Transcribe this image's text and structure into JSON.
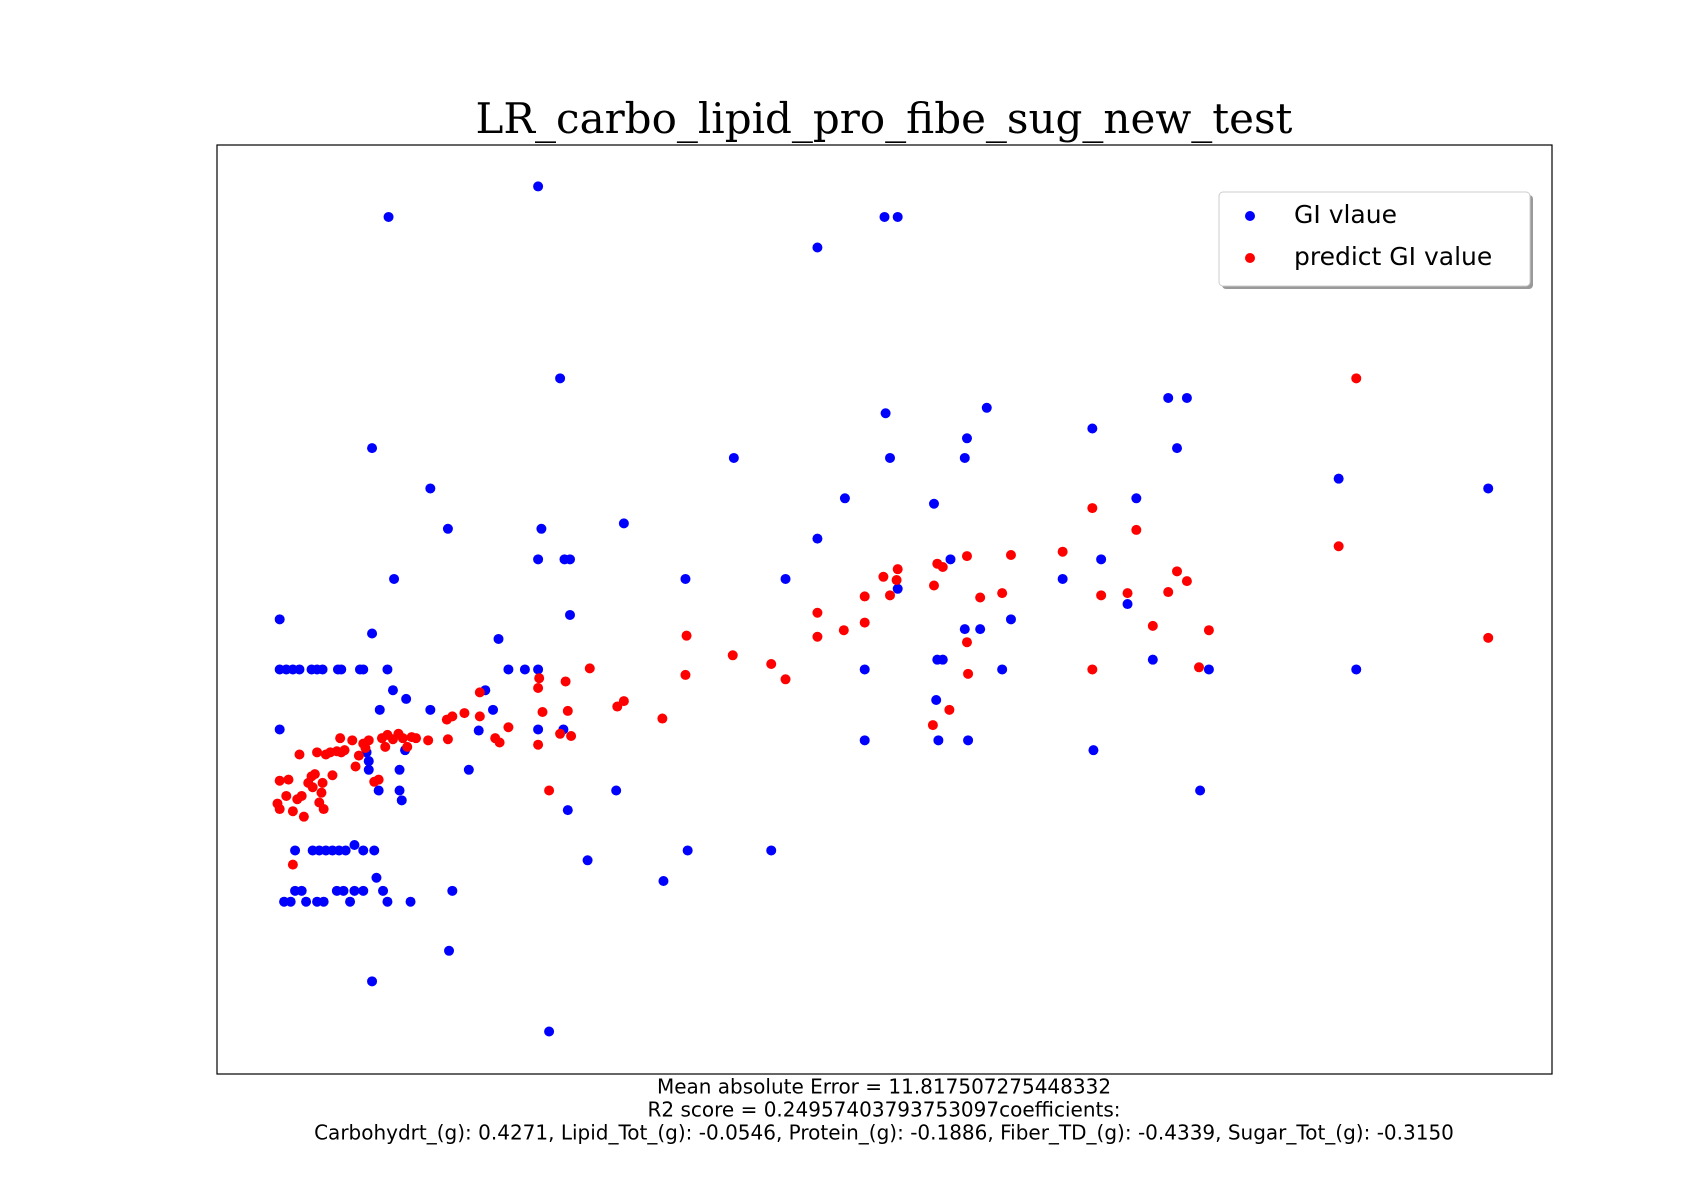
{
  "chart_data": {
    "type": "scatter",
    "title": "LR_carbo_lipid_pro_fibe_sug_new_test",
    "notes": [
      "Mean absolute Error = 11.817507275448332",
      "R2 score = 0.24957403793753097coefficients:",
      "Carbohydrt_(g): 0.4271, Lipid_Tot_(g): -0.0546, Protein_(g): -0.1886, Fiber_TD_(g): -0.4339, Sugar_Tot_(g): -0.3150"
    ],
    "xlim": [
      0,
      1214
    ],
    "ylim": [
      0,
      852
    ],
    "legend": "upper right",
    "series": [
      {
        "name": "GI vlaue",
        "color": "#0000ff",
        "x": [
          57,
          57,
          63,
          69,
          75,
          86,
          91,
          96,
          110,
          113,
          130,
          133,
          155,
          57,
          141,
          156,
          292,
          312,
          302,
          141,
          194,
          210,
          161,
          141,
          160,
          172,
          148,
          194,
          244,
          256,
          265,
          280,
          292,
          292,
          295,
          292,
          316,
          321,
          321,
          315,
          319,
          337,
          229,
          238,
          251,
          370,
          363,
          406,
          426,
          428,
          470,
          504,
          517,
          546,
          546,
          571,
          589,
          589,
          607,
          619,
          608,
          612,
          619,
          652,
          655,
          660,
          654,
          656,
          667,
          680,
          682,
          680,
          694,
          683,
          700,
          714,
          722,
          769,
          796,
          804,
          797,
          828,
          836,
          851,
          865,
          882,
          873,
          894,
          902,
          1020,
          1036,
          1156,
          71,
          87,
          93,
          99,
          105,
          111,
          117,
          133,
          143,
          125,
          71,
          77,
          109,
          115,
          125,
          133,
          151,
          214,
          61,
          67,
          81,
          91,
          97,
          121,
          155,
          176,
          145,
          211,
          138,
          138,
          147,
          166,
          166,
          168,
          171,
          136
        ],
        "values": [
          417,
          371,
          371,
          371,
          371,
          371,
          371,
          371,
          371,
          371,
          371,
          371,
          371,
          316,
          574,
          786,
          814,
          638,
          39,
          85,
          537,
          500,
          454,
          404,
          352,
          344,
          334,
          334,
          352,
          399,
          371,
          371,
          371,
          316,
          500,
          472,
          472,
          472,
          421,
          316,
          242,
          196,
          279,
          315,
          334,
          505,
          260,
          177,
          454,
          205,
          565,
          205,
          454,
          758,
          491,
          528,
          371,
          306,
          786,
          786,
          606,
          565,
          445,
          523,
          380,
          380,
          343,
          306,
          472,
          565,
          583,
          408,
          408,
          306,
          611,
          371,
          417,
          454,
          592,
          472,
          297,
          431,
          528,
          380,
          620,
          620,
          574,
          260,
          371,
          546,
          371,
          537,
          205,
          205,
          205,
          205,
          205,
          205,
          205,
          205,
          205,
          210,
          168,
          168,
          168,
          168,
          168,
          168,
          168,
          168,
          158,
          158,
          158,
          158,
          158,
          158,
          158,
          158,
          180,
          113,
          279,
          287,
          260,
          260,
          279,
          251,
          297,
          295
        ]
      },
      {
        "name": "predict GI value",
        "color": "#ff0000",
        "x": [
          57,
          65,
          55,
          57,
          63,
          69,
          73,
          77,
          79,
          75,
          83,
          86,
          87,
          89,
          91,
          93,
          95,
          97,
          96,
          99,
          103,
          105,
          109,
          112,
          113,
          116,
          123,
          126,
          129,
          133,
          135,
          138,
          143,
          147,
          150,
          153,
          155,
          160,
          165,
          169,
          173,
          177,
          181,
          192,
          209,
          214,
          210,
          225,
          239,
          239,
          253,
          257,
          265,
          292,
          293,
          296,
          292,
          302,
          312,
          317,
          319,
          322,
          339,
          364,
          370,
          405,
          427,
          426,
          469,
          504,
          517,
          546,
          546,
          570,
          589,
          589,
          606,
          612,
          618,
          619,
          652,
          655,
          660,
          651,
          666,
          682,
          682,
          683,
          694,
          714,
          722,
          769,
          796,
          804,
          796,
          828,
          836,
          851,
          865,
          873,
          882,
          893,
          902,
          1020,
          1036,
          1156,
          69
        ],
        "values": [
          269,
          270,
          248,
          243,
          255,
          241,
          252,
          255,
          236,
          293,
          267,
          273,
          263,
          275,
          295,
          249,
          258,
          243,
          267,
          293,
          295,
          274,
          296,
          308,
          295,
          297,
          306,
          282,
          292,
          303,
          299,
          306,
          268,
          270,
          308,
          300,
          311,
          307,
          312,
          308,
          300,
          309,
          308,
          306,
          325,
          328,
          307,
          331,
          350,
          328,
          308,
          304,
          318,
          354,
          363,
          332,
          302,
          260,
          312,
          360,
          333,
          310,
          372,
          337,
          342,
          326,
          402,
          366,
          384,
          376,
          362,
          423,
          401,
          407,
          438,
          414,
          456,
          439,
          453,
          463,
          448,
          468,
          465,
          320,
          334,
          475,
          396,
          367,
          437,
          441,
          476,
          479,
          519,
          439,
          371,
          441,
          499,
          411,
          442,
          461,
          452,
          373,
          407,
          484,
          638,
          400,
          192
        ]
      }
    ]
  }
}
